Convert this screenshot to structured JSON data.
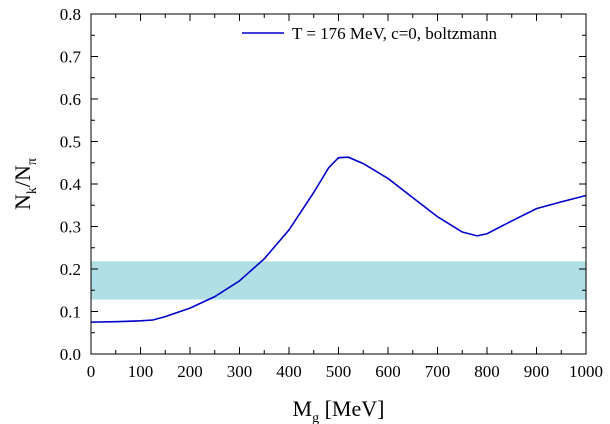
{
  "chart_data": {
    "type": "line",
    "xlabel": {
      "main": "M",
      "sub": "g",
      "suffix": " [MeV]"
    },
    "ylabel": {
      "main": "N",
      "sub1": "k",
      "mid": "/N",
      "sub2": "π"
    },
    "xlim": [
      0,
      1000
    ],
    "ylim": [
      0.0,
      0.8
    ],
    "x_ticks": [
      0,
      100,
      200,
      300,
      400,
      500,
      600,
      700,
      800,
      900,
      1000
    ],
    "x_tick_labels": [
      "0",
      "100",
      "200",
      "300",
      "400",
      "500",
      "600",
      "700",
      "800",
      "900",
      "1000"
    ],
    "y_ticks": [
      0.0,
      0.1,
      0.2,
      0.3,
      0.4,
      0.5,
      0.6,
      0.7,
      0.8
    ],
    "y_tick_labels": [
      "0.0",
      "0.1",
      "0.2",
      "0.3",
      "0.4",
      "0.5",
      "0.6",
      "0.7",
      "0.8"
    ],
    "grid": false,
    "legend_position": "top-right",
    "band": {
      "y_low": 0.128,
      "y_high": 0.218,
      "color": "#b0dfe5"
    },
    "series": [
      {
        "name": "T = 176 MeV, c=0, boltzmann",
        "color": "#0000cc",
        "x": [
          0,
          50,
          100,
          125,
          150,
          200,
          250,
          300,
          350,
          400,
          450,
          480,
          500,
          520,
          550,
          600,
          650,
          700,
          750,
          780,
          800,
          850,
          900,
          950,
          1000
        ],
        "y": [
          0.075,
          0.076,
          0.078,
          0.08,
          0.088,
          0.108,
          0.135,
          0.172,
          0.224,
          0.292,
          0.38,
          0.438,
          0.462,
          0.463,
          0.448,
          0.413,
          0.368,
          0.323,
          0.287,
          0.278,
          0.283,
          0.313,
          0.342,
          0.358,
          0.373
        ]
      }
    ]
  }
}
